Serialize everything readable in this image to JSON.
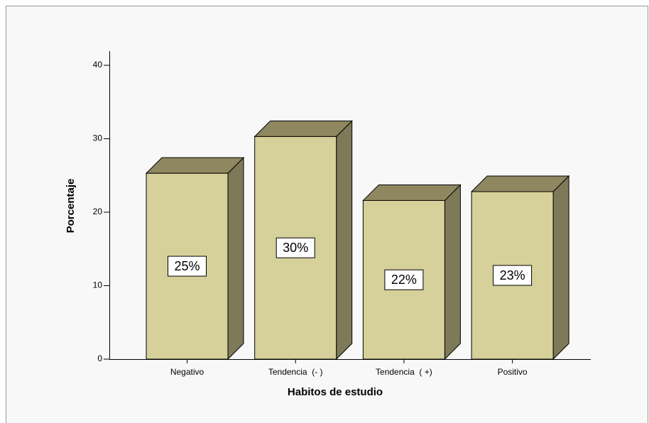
{
  "chart_data": {
    "type": "bar",
    "x_label": "Habitos de estudio",
    "y_label": "Porcentaje",
    "categories": [
      "Negativo",
      "Tendencia  (- )",
      "Tendencia  ( +)",
      "Positivo"
    ],
    "values": [
      25.3,
      30.3,
      21.6,
      22.8
    ],
    "value_labels": [
      "25%",
      "30%",
      "22%",
      "23%"
    ],
    "color": "#d6d09b",
    "ylim": [
      0,
      42
    ],
    "yticks": [
      0,
      10,
      20,
      30,
      40
    ],
    "grid": false
  }
}
